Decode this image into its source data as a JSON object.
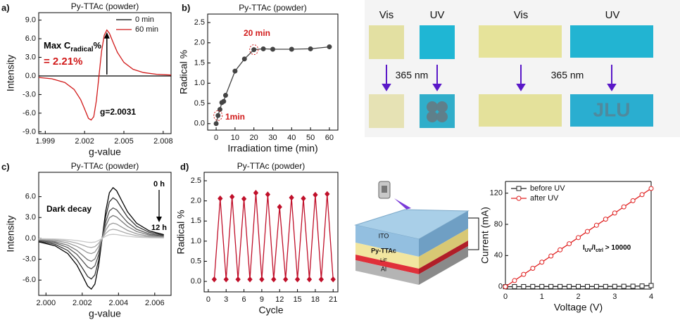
{
  "chart_data": [
    {
      "type": "line",
      "panel_label": "a)",
      "title": "Py-TTAc (powder)",
      "x_label": "g-value",
      "y_label": "Intensity",
      "x": [
        1.9985,
        1.9995,
        2.0005,
        2.0012,
        2.0017,
        2.002,
        2.0023,
        2.0025,
        2.0027,
        2.0029,
        2.0031,
        2.0033,
        2.0035,
        2.0037,
        2.0039,
        2.0042,
        2.0045,
        2.005,
        2.0057,
        2.0065,
        2.0075,
        2.0086
      ],
      "series": [
        {
          "name": "0 min",
          "color": "#000000",
          "values": [
            0,
            0,
            0,
            0,
            0,
            0,
            0,
            0,
            0,
            0,
            0,
            0,
            0,
            0,
            0,
            0,
            0,
            0,
            0,
            0,
            0,
            0
          ]
        },
        {
          "name": "60 min",
          "color": "#d11a1a",
          "values": [
            -0.24,
            -0.46,
            -1.07,
            -2.18,
            -3.82,
            -5.3,
            -6.85,
            -7.1,
            -6.57,
            -3.98,
            0,
            3.98,
            6.57,
            7.4,
            6.85,
            5.3,
            3.82,
            2.18,
            1.07,
            0.54,
            0.27,
            0.14
          ]
        }
      ],
      "xlim": [
        1.9985,
        2.0086
      ],
      "xticks": [
        1.999,
        2.002,
        2.005,
        2.008
      ],
      "ylim": [
        -9.3,
        10.2
      ],
      "yticks": [
        {
          "value": -9,
          "label": "-9.0"
        },
        {
          "value": -6,
          "label": "-6.0"
        },
        {
          "value": -3,
          "label": "-3.0"
        },
        {
          "value": 0,
          "label": "0.0"
        },
        {
          "value": 3,
          "label": "3.0"
        },
        {
          "value": 6,
          "label": "6.0"
        },
        {
          "value": 9,
          "label": "9.0"
        }
      ],
      "legend": "upper right",
      "box": true,
      "annotations": [
        {
          "text_parts": [
            "Max C",
            "radical",
            "%"
          ],
          "color": "#000000"
        },
        {
          "text": "= 2.21%",
          "color": "#d11a1a"
        },
        {
          "text": "g=2.0031",
          "color": "#000000"
        }
      ]
    },
    {
      "type": "line",
      "panel_label": "b)",
      "title": "Py-TTAc (powder)",
      "x_label": "Irradiation time (min)",
      "y_label": "Radical %",
      "x": [
        0,
        1,
        2,
        3,
        4,
        5,
        10,
        15,
        20,
        25,
        30,
        40,
        50,
        60
      ],
      "series": [
        {
          "color": "#444444",
          "marker": "circle",
          "values": [
            0,
            0.2,
            0.35,
            0.52,
            0.55,
            0.7,
            1.3,
            1.6,
            1.83,
            1.85,
            1.84,
            1.84,
            1.85,
            1.9
          ]
        }
      ],
      "xlim": [
        -4.5,
        64.5
      ],
      "xticks": [
        0,
        10,
        20,
        30,
        40,
        50,
        60
      ],
      "ylim": [
        -0.16,
        2.71
      ],
      "yticks": [
        {
          "value": 0,
          "label": "0.0"
        },
        0.5,
        {
          "value": 1,
          "label": "1.0"
        },
        1.5,
        {
          "value": 2,
          "label": "2.0"
        },
        2.5
      ],
      "box": true,
      "annotations": [
        {
          "text": "20 min",
          "color": "#d11a1a"
        },
        {
          "text": "1min",
          "color": "#d11a1a"
        }
      ]
    },
    {
      "type": "line",
      "panel_label": "c)",
      "title": "Py-TTAc (powder)",
      "x_label": "g-value",
      "y_label": "Intensity",
      "x": [
        1.9996,
        2.0005,
        2.0012,
        2.0017,
        2.002,
        2.0023,
        2.0025,
        2.0027,
        2.0029,
        2.0031,
        2.0033,
        2.0035,
        2.0037,
        2.0039,
        2.0042,
        2.0045,
        2.005,
        2.0057,
        2.0065
      ],
      "series": [
        {
          "color": "#000000",
          "values": [
            -0.5,
            -1.07,
            -2.18,
            -3.82,
            -5.3,
            -6.85,
            -7.3,
            -6.57,
            -3.98,
            0,
            3.98,
            6.57,
            7.3,
            6.85,
            5.3,
            3.82,
            2.18,
            1.07,
            0.54
          ]
        },
        {
          "color": "#333333",
          "values": [
            -0.4,
            -0.86,
            -1.74,
            -3.06,
            -4.24,
            -5.48,
            -5.84,
            -5.26,
            -3.18,
            0,
            3.18,
            5.26,
            5.84,
            5.48,
            4.24,
            3.06,
            1.74,
            0.86,
            0.43
          ]
        },
        {
          "color": "#555555",
          "values": [
            -0.3,
            -0.64,
            -1.31,
            -2.29,
            -3.18,
            -4.11,
            -4.38,
            -3.94,
            -2.39,
            0,
            2.39,
            3.94,
            4.38,
            4.11,
            3.18,
            2.29,
            1.31,
            0.64,
            0.32
          ]
        },
        {
          "color": "#777777",
          "values": [
            -0.23,
            -0.48,
            -0.98,
            -1.72,
            -2.39,
            -3.08,
            -3.29,
            -2.96,
            -1.79,
            0,
            1.79,
            2.96,
            3.29,
            3.08,
            2.39,
            1.72,
            0.98,
            0.48,
            0.24
          ]
        },
        {
          "color": "#999999",
          "values": [
            -0.15,
            -0.32,
            -0.65,
            -1.15,
            -1.59,
            -2.06,
            -2.19,
            -1.97,
            -1.19,
            0,
            1.19,
            1.97,
            2.19,
            2.06,
            1.59,
            1.15,
            0.65,
            0.32,
            0.16
          ]
        },
        {
          "color": "#aaaaaa",
          "values": [
            -0.09,
            -0.19,
            -0.39,
            -0.69,
            -0.95,
            -1.23,
            -1.31,
            -1.18,
            -0.72,
            0,
            0.72,
            1.18,
            1.31,
            1.23,
            0.95,
            0.69,
            0.39,
            0.19,
            0.1
          ]
        },
        {
          "color": "#c8c8c8",
          "values": [
            -0.04,
            -0.09,
            -0.17,
            -0.31,
            -0.42,
            -0.55,
            -0.58,
            -0.53,
            -0.32,
            0,
            0.32,
            0.53,
            0.58,
            0.55,
            0.42,
            0.31,
            0.17,
            0.09,
            0.04
          ]
        }
      ],
      "xlim": [
        1.9996,
        2.0069
      ],
      "xticks": [
        {
          "value": 2,
          "label": "2.000"
        },
        2.002,
        2.004,
        2.006
      ],
      "ylim": [
        -8.2,
        9.5
      ],
      "yticks": [
        {
          "value": -6,
          "label": "-6.0"
        },
        {
          "value": -3,
          "label": "-3.0"
        },
        {
          "value": 0,
          "label": "0.0"
        },
        {
          "value": 3,
          "label": "3.0"
        },
        {
          "value": 6,
          "label": "6.0"
        }
      ],
      "box": true,
      "annotations": [
        {
          "text": "Dark decay",
          "color": "#000000"
        },
        {
          "text": "0 h",
          "color": "#000000"
        },
        {
          "text": "12 h",
          "color": "#000000"
        }
      ]
    },
    {
      "type": "line",
      "panel_label": "d)",
      "title": "Py-TTAc (powder)",
      "x_label": "Cycle",
      "y_label": "Radical %",
      "x": [
        1,
        2,
        3,
        4,
        5,
        6,
        7,
        8,
        9,
        10,
        11,
        12,
        13,
        14,
        15,
        16,
        17,
        18,
        19,
        20,
        21
      ],
      "series": [
        {
          "color": "#c0102a",
          "marker": "diamond",
          "values": [
            0.05,
            2.06,
            0.05,
            2.1,
            0.05,
            2.05,
            0.05,
            2.2,
            0.05,
            2.16,
            0.05,
            1.85,
            0.05,
            2.08,
            0.05,
            2.06,
            0.05,
            2.15,
            0.05,
            2.17,
            0.05
          ]
        }
      ],
      "xlim": [
        -0.7,
        21.8
      ],
      "xticks": [
        0,
        3,
        6,
        9,
        12,
        15,
        18,
        21
      ],
      "ylim": [
        -0.26,
        2.71
      ],
      "yticks": [
        {
          "value": 0,
          "label": "0.0"
        },
        0.5,
        {
          "value": 1,
          "label": "1.0"
        },
        1.5,
        {
          "value": 2,
          "label": "2.0"
        },
        2.5
      ],
      "box": true,
      "annotations": []
    },
    {
      "type": "line",
      "x_label": "Voltage (V)",
      "y_label": "Current (mA)",
      "x": [
        0,
        0.25,
        0.5,
        0.75,
        1,
        1.25,
        1.5,
        1.75,
        2,
        2.25,
        2.5,
        2.75,
        3,
        3.25,
        3.5,
        3.75,
        4
      ],
      "series": [
        {
          "name": "before UV",
          "color": "#222222",
          "marker": "square",
          "marker_fill": "#ffffff",
          "values": [
            0,
            0.2,
            0.2,
            0.3,
            0.3,
            0.3,
            0.3,
            0.3,
            0.3,
            0.3,
            0.3,
            0.3,
            0.4,
            0.5,
            0.6,
            0.9,
            1.5
          ]
        },
        {
          "name": "after UV",
          "color": "#e02020",
          "marker": "circle",
          "marker_fill": "#ffffff",
          "values": [
            0,
            7.9,
            15.8,
            23.6,
            31.5,
            39.4,
            47.3,
            55.1,
            63,
            70.9,
            78.8,
            86.6,
            94.5,
            102.4,
            110.3,
            118.1,
            126
          ]
        }
      ],
      "xlim": [
        0,
        4
      ],
      "xticks": [
        0,
        1,
        2,
        3,
        4
      ],
      "ylim": [
        -3,
        135
      ],
      "yticks": [
        0,
        40,
        80,
        120
      ],
      "legend": "upper left",
      "box": false,
      "annotations": [
        {
          "text_parts": [
            "I",
            "UV",
            "/I",
            "ctrl",
            " > 10000"
          ],
          "color": "#000000"
        }
      ]
    }
  ],
  "photos": {
    "labels": [
      "Vis",
      "UV",
      "Vis",
      "UV"
    ],
    "wavelength": [
      "365 nm",
      "365 nm"
    ],
    "pattern_text": "JLU"
  },
  "device": {
    "layers": [
      "ITO",
      "Py-TTAc",
      "LiF",
      "Al"
    ]
  }
}
